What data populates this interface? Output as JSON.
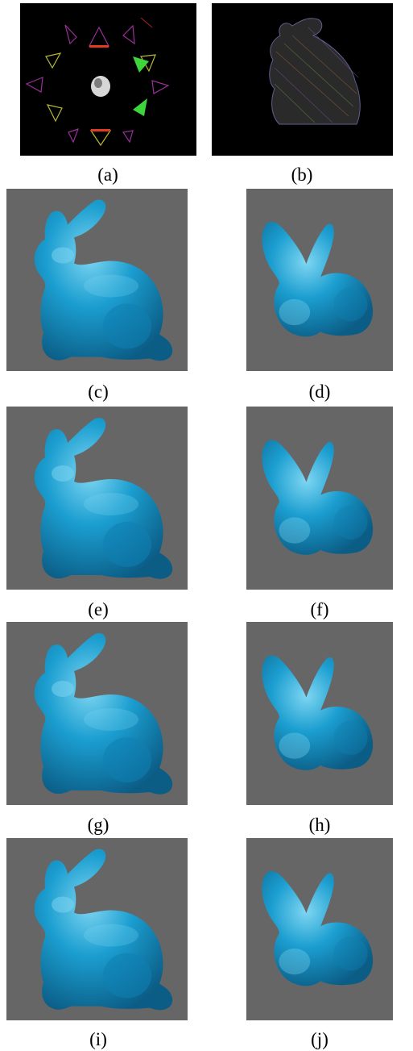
{
  "figure": {
    "panels": [
      {
        "id": "a",
        "caption": "(a)",
        "content": "camera-rig-render"
      },
      {
        "id": "b",
        "caption": "(b)",
        "content": "bunny-wireframe-render"
      },
      {
        "id": "c",
        "caption": "(c)",
        "content": "bunny-reconstruction-side"
      },
      {
        "id": "d",
        "caption": "(d)",
        "content": "bunny-reconstruction-front"
      },
      {
        "id": "e",
        "caption": "(e)",
        "content": "bunny-reconstruction-side"
      },
      {
        "id": "f",
        "caption": "(f)",
        "content": "bunny-reconstruction-front"
      },
      {
        "id": "g",
        "caption": "(g)",
        "content": "bunny-reconstruction-side"
      },
      {
        "id": "h",
        "caption": "(h)",
        "content": "bunny-reconstruction-front"
      },
      {
        "id": "i",
        "caption": "(i)",
        "content": "bunny-reconstruction-side"
      },
      {
        "id": "j",
        "caption": "(j)",
        "content": "bunny-reconstruction-front"
      }
    ],
    "colors": {
      "panel_dark_bg": "#000000",
      "panel_render_bg": "#666666",
      "mesh": "#1b9ed0",
      "mesh_shadow": "#0b5d86",
      "mesh_highlight": "#7fd6f2"
    }
  }
}
